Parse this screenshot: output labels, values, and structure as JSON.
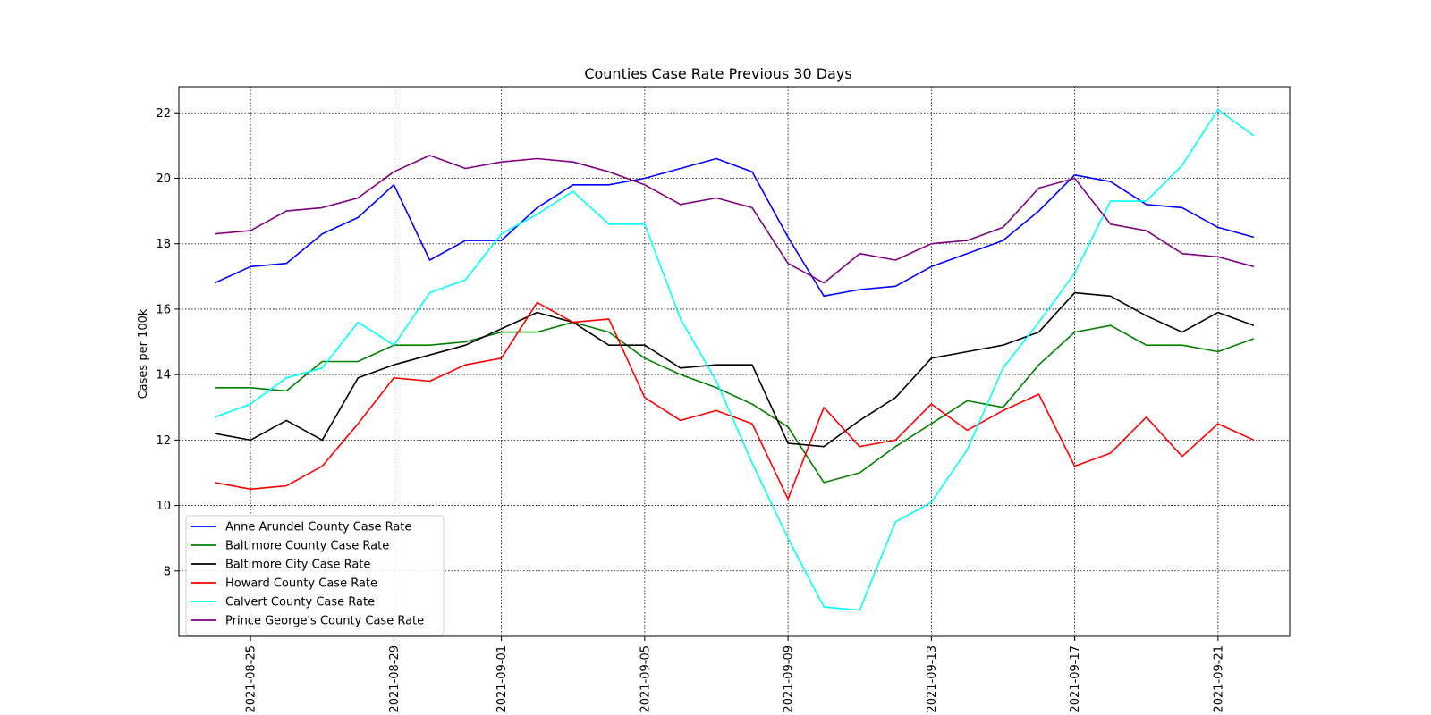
{
  "chart_data": {
    "type": "line",
    "title": "Counties Case Rate Previous 30 Days",
    "xlabel": "",
    "ylabel": "Cases per 100k",
    "x": [
      "2021-08-24",
      "2021-08-25",
      "2021-08-26",
      "2021-08-27",
      "2021-08-28",
      "2021-08-29",
      "2021-08-30",
      "2021-08-31",
      "2021-09-01",
      "2021-09-02",
      "2021-09-03",
      "2021-09-04",
      "2021-09-05",
      "2021-09-06",
      "2021-09-07",
      "2021-09-08",
      "2021-09-09",
      "2021-09-10",
      "2021-09-11",
      "2021-09-12",
      "2021-09-13",
      "2021-09-14",
      "2021-09-15",
      "2021-09-16",
      "2021-09-17",
      "2021-09-18",
      "2021-09-19",
      "2021-09-20",
      "2021-09-21",
      "2021-09-22"
    ],
    "x_ticks": [
      "2021-08-25",
      "2021-08-29",
      "2021-09-01",
      "2021-09-05",
      "2021-09-09",
      "2021-09-13",
      "2021-09-17",
      "2021-09-21"
    ],
    "xlim": [
      "2021-08-23",
      "2021-09-23"
    ],
    "ylim": [
      6,
      22.8
    ],
    "y_ticks": [
      8,
      10,
      12,
      14,
      16,
      18,
      20,
      22
    ],
    "grid": true,
    "legend_position": "lower-left",
    "series": [
      {
        "name": "Anne Arundel County Case Rate",
        "color": "#0000ff",
        "values": [
          16.8,
          17.3,
          17.4,
          18.3,
          18.8,
          19.8,
          17.5,
          18.1,
          18.1,
          19.1,
          19.8,
          19.8,
          20.0,
          20.3,
          20.6,
          20.2,
          18.2,
          16.4,
          16.6,
          16.7,
          17.3,
          17.7,
          18.1,
          19.0,
          20.1,
          19.9,
          19.2,
          19.1,
          18.5,
          18.2
        ]
      },
      {
        "name": "Baltimore County Case Rate",
        "color": "#008000",
        "values": [
          13.6,
          13.6,
          13.5,
          14.4,
          14.4,
          14.9,
          14.9,
          15.0,
          15.3,
          15.3,
          15.6,
          15.3,
          14.5,
          14.0,
          13.6,
          13.1,
          12.4,
          10.7,
          11.0,
          11.8,
          12.5,
          13.2,
          13.0,
          14.3,
          15.3,
          15.5,
          14.9,
          14.9,
          14.7,
          15.1
        ]
      },
      {
        "name": "Baltimore City Case Rate",
        "color": "#000000",
        "values": [
          12.2,
          12.0,
          12.6,
          12.0,
          13.9,
          14.3,
          14.6,
          14.9,
          15.4,
          15.9,
          15.6,
          14.9,
          14.9,
          14.2,
          14.3,
          14.3,
          11.9,
          11.8,
          12.6,
          13.3,
          14.5,
          14.7,
          14.9,
          15.3,
          16.5,
          16.4,
          15.8,
          15.3,
          15.9,
          15.5
        ]
      },
      {
        "name": "Howard County Case Rate",
        "color": "#ff0000",
        "values": [
          10.7,
          10.5,
          10.6,
          11.2,
          12.5,
          13.9,
          13.8,
          14.3,
          14.5,
          16.2,
          15.6,
          15.7,
          13.3,
          12.6,
          12.9,
          12.5,
          10.2,
          13.0,
          11.8,
          12.0,
          13.1,
          12.3,
          12.9,
          13.4,
          11.2,
          11.6,
          12.7,
          11.5,
          12.5,
          12.0
        ]
      },
      {
        "name": "Calvert County Case Rate",
        "color": "#00ffff",
        "values": [
          12.7,
          13.1,
          13.9,
          14.2,
          15.6,
          14.9,
          16.5,
          16.9,
          18.3,
          18.9,
          19.6,
          18.6,
          18.6,
          15.7,
          13.8,
          11.3,
          9.0,
          6.9,
          6.8,
          9.5,
          10.1,
          11.7,
          14.2,
          15.6,
          17.1,
          19.3,
          19.3,
          20.4,
          22.1,
          21.3
        ]
      },
      {
        "name": "Prince George's County Case Rate",
        "color": "#800080",
        "values": [
          18.3,
          18.4,
          19.0,
          19.1,
          19.4,
          20.2,
          20.7,
          20.3,
          20.5,
          20.6,
          20.5,
          20.2,
          19.8,
          19.2,
          19.4,
          19.1,
          17.4,
          16.8,
          17.7,
          17.5,
          18.0,
          18.1,
          18.5,
          19.7,
          20.0,
          18.6,
          18.4,
          17.7,
          17.6,
          17.3
        ]
      }
    ]
  }
}
